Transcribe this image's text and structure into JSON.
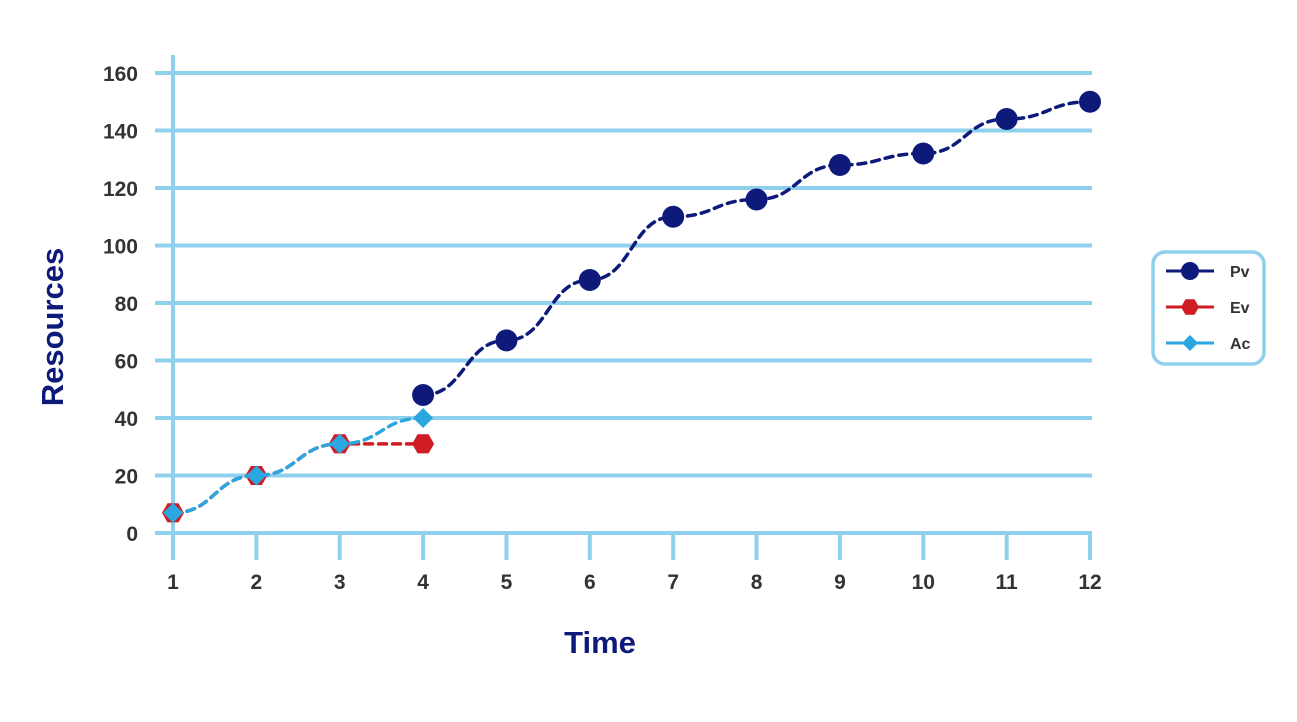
{
  "chart_data": {
    "type": "line",
    "title": "",
    "xlabel": "Time",
    "ylabel": "Resources",
    "x": [
      1,
      2,
      3,
      4,
      5,
      6,
      7,
      8,
      9,
      10,
      11,
      12
    ],
    "xlim": [
      1,
      12
    ],
    "ylim": [
      0,
      160
    ],
    "yticks": [
      0,
      20,
      40,
      60,
      80,
      100,
      120,
      140,
      160
    ],
    "grid": true,
    "legend_position": "right",
    "series": [
      {
        "name": "Pv",
        "x": [
          1,
          2,
          3,
          4,
          5,
          6,
          7,
          8,
          9,
          10,
          11,
          12
        ],
        "values": [
          null,
          null,
          null,
          48,
          67,
          88,
          110,
          116,
          128,
          132,
          144,
          150
        ],
        "color": "#0d1a7a",
        "marker": "circle",
        "line": "dashed"
      },
      {
        "name": "Ev",
        "x": [
          1,
          2,
          3,
          4
        ],
        "values": [
          7,
          20,
          31,
          31
        ],
        "color": "#d01c24",
        "marker": "hexagon",
        "line": "dashed"
      },
      {
        "name": "Ac",
        "x": [
          1,
          2,
          3,
          4
        ],
        "values": [
          7,
          20,
          31,
          40
        ],
        "color": "#2aa7e0",
        "marker": "diamond",
        "line": "dashed"
      }
    ],
    "colors": {
      "grid": "#8fd1ec",
      "axis_title": "#0d1a7a",
      "legend_border": "#8fd1ec"
    }
  }
}
